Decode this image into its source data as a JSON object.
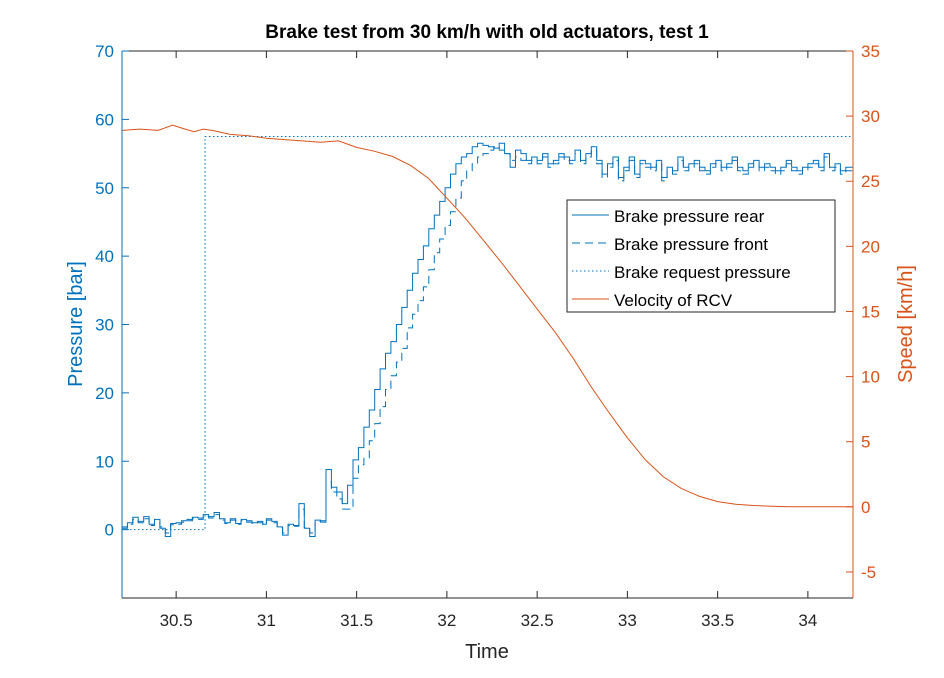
{
  "chart_data": {
    "type": "line",
    "title": "Brake test from 30 km/h with old actuators, test 1",
    "xlabel": "Time",
    "ylabel_left": "Pressure [bar]",
    "ylabel_right": "Speed [km/h]",
    "xlim": [
      30.2,
      34.25
    ],
    "ylim_left": [
      -10,
      70
    ],
    "ylim_right": [
      -7,
      35
    ],
    "xticks": [
      30.5,
      31,
      31.5,
      32,
      32.5,
      33,
      33.5,
      34
    ],
    "xtick_labels": [
      "30.5",
      "31",
      "31.5",
      "32",
      "32.5",
      "33",
      "33.5",
      "34"
    ],
    "yticks_left": [
      0,
      10,
      20,
      30,
      40,
      50,
      60,
      70
    ],
    "ytick_labels_left": [
      "0",
      "10",
      "20",
      "30",
      "40",
      "50",
      "60",
      "70"
    ],
    "yticks_right": [
      -5,
      0,
      5,
      10,
      15,
      20,
      25,
      30,
      35
    ],
    "ytick_labels_right": [
      "-5",
      "0",
      "5",
      "10",
      "15",
      "20",
      "25",
      "30",
      "35"
    ],
    "grid": false,
    "legend_position": "inside right",
    "colors": {
      "left_axis": "#0072BD",
      "right_axis": "#D95319",
      "axes": "#262626"
    },
    "series": [
      {
        "name": "Brake pressure rear",
        "axis": "left",
        "style": "solid",
        "step": true,
        "color": "#0072BD",
        "x": [
          30.2,
          30.23,
          30.26,
          30.29,
          30.32,
          30.35,
          30.38,
          30.41,
          30.44,
          30.47,
          30.5,
          30.53,
          30.56,
          30.59,
          30.62,
          30.65,
          30.68,
          30.71,
          30.74,
          30.77,
          30.8,
          30.83,
          30.86,
          30.89,
          30.92,
          30.95,
          30.98,
          31.0,
          31.03,
          31.06,
          31.09,
          31.12,
          31.15,
          31.18,
          31.21,
          31.24,
          31.27,
          31.3,
          31.33,
          31.36,
          31.39,
          31.42,
          31.45,
          31.48,
          31.51,
          31.54,
          31.57,
          31.6,
          31.63,
          31.66,
          31.69,
          31.72,
          31.75,
          31.78,
          31.81,
          31.84,
          31.87,
          31.9,
          31.93,
          31.96,
          31.99,
          32.02,
          32.05,
          32.08,
          32.11,
          32.14,
          32.17,
          32.2,
          32.23,
          32.26,
          32.29,
          32.32,
          32.35,
          32.38,
          32.41,
          32.44,
          32.47,
          32.5,
          32.53,
          32.56,
          32.59,
          32.62,
          32.65,
          32.68,
          32.71,
          32.74,
          32.77,
          32.8,
          32.83,
          32.86,
          32.89,
          32.92,
          32.95,
          32.98,
          33.01,
          33.04,
          33.07,
          33.1,
          33.13,
          33.16,
          33.19,
          33.22,
          33.25,
          33.28,
          33.31,
          33.34,
          33.37,
          33.4,
          33.43,
          33.46,
          33.49,
          33.52,
          33.55,
          33.58,
          33.61,
          33.64,
          33.67,
          33.7,
          33.73,
          33.76,
          33.79,
          33.82,
          33.85,
          33.88,
          33.91,
          33.94,
          33.97,
          34.0,
          34.03,
          34.06,
          34.09,
          34.12,
          34.15,
          34.18,
          34.21,
          34.25
        ],
        "y": [
          0.4,
          1.0,
          1.8,
          1.2,
          1.9,
          0.8,
          1.5,
          0.2,
          -1.0,
          0.9,
          1.0,
          1.3,
          1.5,
          1.8,
          1.7,
          2.2,
          1.9,
          2.5,
          1.6,
          1.0,
          1.6,
          0.9,
          1.5,
          1.3,
          1.0,
          1.2,
          0.8,
          1.6,
          1.2,
          0.4,
          -0.8,
          0.8,
          0.6,
          3.8,
          0.2,
          -1.0,
          1.4,
          1.3,
          8.8,
          6.2,
          5.5,
          3.8,
          6.5,
          10.2,
          12.0,
          15.0,
          17.5,
          20.5,
          23.5,
          25.8,
          27.5,
          30.0,
          32.5,
          35.0,
          37.5,
          39.5,
          41.5,
          44.0,
          46.0,
          48.0,
          50.0,
          52.0,
          53.5,
          54.5,
          55.0,
          56.0,
          56.5,
          56.2,
          56.0,
          55.8,
          56.5,
          55.0,
          53.0,
          55.5,
          55.0,
          54.0,
          54.5,
          54.0,
          55.0,
          53.5,
          54.0,
          55.0,
          54.5,
          54.0,
          55.5,
          54.0,
          55.0,
          56.0,
          54.0,
          52.0,
          53.5,
          54.5,
          51.5,
          53.0,
          54.5,
          52.0,
          54.0,
          53.5,
          53.0,
          54.0,
          51.5,
          53.0,
          52.5,
          54.5,
          53.0,
          53.5,
          54.0,
          53.0,
          52.5,
          53.5,
          54.0,
          53.0,
          53.5,
          54.5,
          53.0,
          52.5,
          53.5,
          54.0,
          53.0,
          53.5,
          53.0,
          52.5,
          53.0,
          54.0,
          53.0,
          52.5,
          53.0,
          53.5,
          54.0,
          53.0,
          55.0,
          53.0,
          53.5,
          52.5,
          53.0,
          53.5
        ]
      },
      {
        "name": "Brake pressure front",
        "axis": "left",
        "style": "dashed",
        "step": true,
        "color": "#0072BD",
        "x": [
          30.2,
          30.23,
          30.26,
          30.29,
          30.32,
          30.35,
          30.38,
          30.41,
          30.44,
          30.47,
          30.5,
          30.53,
          30.56,
          30.59,
          30.62,
          30.65,
          30.68,
          30.71,
          30.74,
          30.77,
          30.8,
          30.83,
          30.86,
          30.89,
          30.92,
          30.95,
          30.98,
          31.0,
          31.03,
          31.06,
          31.09,
          31.12,
          31.15,
          31.18,
          31.21,
          31.24,
          31.27,
          31.3,
          31.33,
          31.36,
          31.39,
          31.42,
          31.45,
          31.48,
          31.51,
          31.54,
          31.57,
          31.6,
          31.63,
          31.66,
          31.69,
          31.72,
          31.75,
          31.78,
          31.81,
          31.84,
          31.87,
          31.9,
          31.93,
          31.96,
          31.99,
          32.02,
          32.05,
          32.08,
          32.11,
          32.14,
          32.17,
          32.2,
          32.23,
          32.26,
          32.29,
          32.32,
          32.35,
          32.38,
          32.41,
          32.44,
          32.47,
          32.5,
          32.53,
          32.56,
          32.59,
          32.62,
          32.65,
          32.68,
          32.71,
          32.74,
          32.77,
          32.8,
          32.83,
          32.86,
          32.89,
          32.92,
          32.95,
          32.98,
          33.01,
          33.04,
          33.07,
          33.1,
          33.13,
          33.16,
          33.19,
          33.22,
          33.25,
          33.28,
          33.31,
          33.34,
          33.37,
          33.4,
          33.43,
          33.46,
          33.49,
          33.52,
          33.55,
          33.58,
          33.61,
          33.64,
          33.67,
          33.7,
          33.73,
          33.76,
          33.79,
          33.82,
          33.85,
          33.88,
          33.91,
          33.94,
          33.97,
          34.0,
          34.03,
          34.06,
          34.09,
          34.12,
          34.15,
          34.18,
          34.21,
          34.25
        ],
        "y": [
          0.2,
          0.8,
          1.5,
          1.0,
          1.6,
          0.6,
          1.2,
          0.4,
          -0.5,
          0.7,
          0.8,
          1.1,
          1.3,
          1.6,
          1.5,
          2.0,
          1.7,
          2.2,
          1.4,
          0.9,
          1.4,
          0.8,
          1.3,
          1.1,
          0.9,
          1.0,
          0.7,
          1.4,
          1.0,
          0.3,
          -0.5,
          0.6,
          0.5,
          3.0,
          0.3,
          -0.5,
          1.2,
          1.1,
          7.0,
          5.5,
          4.5,
          3.0,
          3.0,
          7.5,
          9.5,
          10.5,
          13.0,
          15.5,
          18.0,
          20.5,
          22.5,
          24.5,
          26.5,
          29.5,
          31.5,
          33.5,
          35.5,
          38.0,
          40.5,
          42.5,
          44.5,
          46.5,
          48.5,
          51.0,
          52.5,
          53.5,
          54.5,
          55.0,
          55.5,
          56.0,
          55.5,
          55.0,
          54.0,
          54.5,
          54.0,
          53.5,
          54.0,
          53.5,
          54.5,
          53.0,
          53.5,
          54.5,
          54.0,
          53.5,
          55.0,
          53.5,
          54.5,
          55.5,
          53.5,
          51.5,
          53.0,
          54.0,
          51.0,
          52.5,
          54.0,
          51.5,
          53.5,
          53.0,
          52.5,
          53.5,
          51.0,
          52.5,
          52.0,
          54.0,
          52.5,
          53.0,
          53.5,
          52.5,
          52.0,
          53.0,
          53.5,
          52.5,
          53.0,
          54.0,
          52.5,
          52.0,
          53.0,
          53.5,
          52.5,
          53.0,
          52.5,
          52.0,
          52.5,
          53.5,
          52.5,
          52.0,
          52.5,
          53.0,
          53.5,
          52.5,
          54.5,
          52.5,
          53.0,
          52.0,
          52.5,
          53.0
        ]
      },
      {
        "name": "Brake request pressure",
        "axis": "left",
        "style": "dotted",
        "step": true,
        "color": "#0072BD",
        "x": [
          30.2,
          30.66,
          30.66,
          34.25
        ],
        "y": [
          0,
          0,
          57.5,
          57.5
        ]
      },
      {
        "name": "Velocity of RCV",
        "axis": "right",
        "style": "solid",
        "step": false,
        "color": "#D95319",
        "x": [
          30.2,
          30.3,
          30.4,
          30.48,
          30.55,
          30.6,
          30.65,
          30.7,
          30.8,
          30.9,
          31.0,
          31.1,
          31.2,
          31.3,
          31.4,
          31.5,
          31.6,
          31.7,
          31.8,
          31.9,
          32.0,
          32.1,
          32.2,
          32.3,
          32.4,
          32.5,
          32.6,
          32.7,
          32.8,
          32.9,
          33.0,
          33.1,
          33.2,
          33.3,
          33.4,
          33.5,
          33.6,
          33.7,
          33.8,
          33.9,
          34.0,
          34.1,
          34.25
        ],
        "y": [
          28.9,
          29.0,
          28.9,
          29.3,
          29.0,
          28.8,
          29.0,
          28.9,
          28.6,
          28.5,
          28.3,
          28.2,
          28.1,
          28.0,
          28.1,
          27.6,
          27.3,
          26.9,
          26.2,
          25.2,
          23.7,
          22.2,
          20.5,
          18.8,
          17.0,
          15.2,
          13.4,
          11.4,
          9.2,
          7.2,
          5.3,
          3.6,
          2.3,
          1.4,
          0.8,
          0.4,
          0.2,
          0.1,
          0.05,
          0.0,
          0.0,
          0.0,
          0.0
        ]
      }
    ]
  }
}
